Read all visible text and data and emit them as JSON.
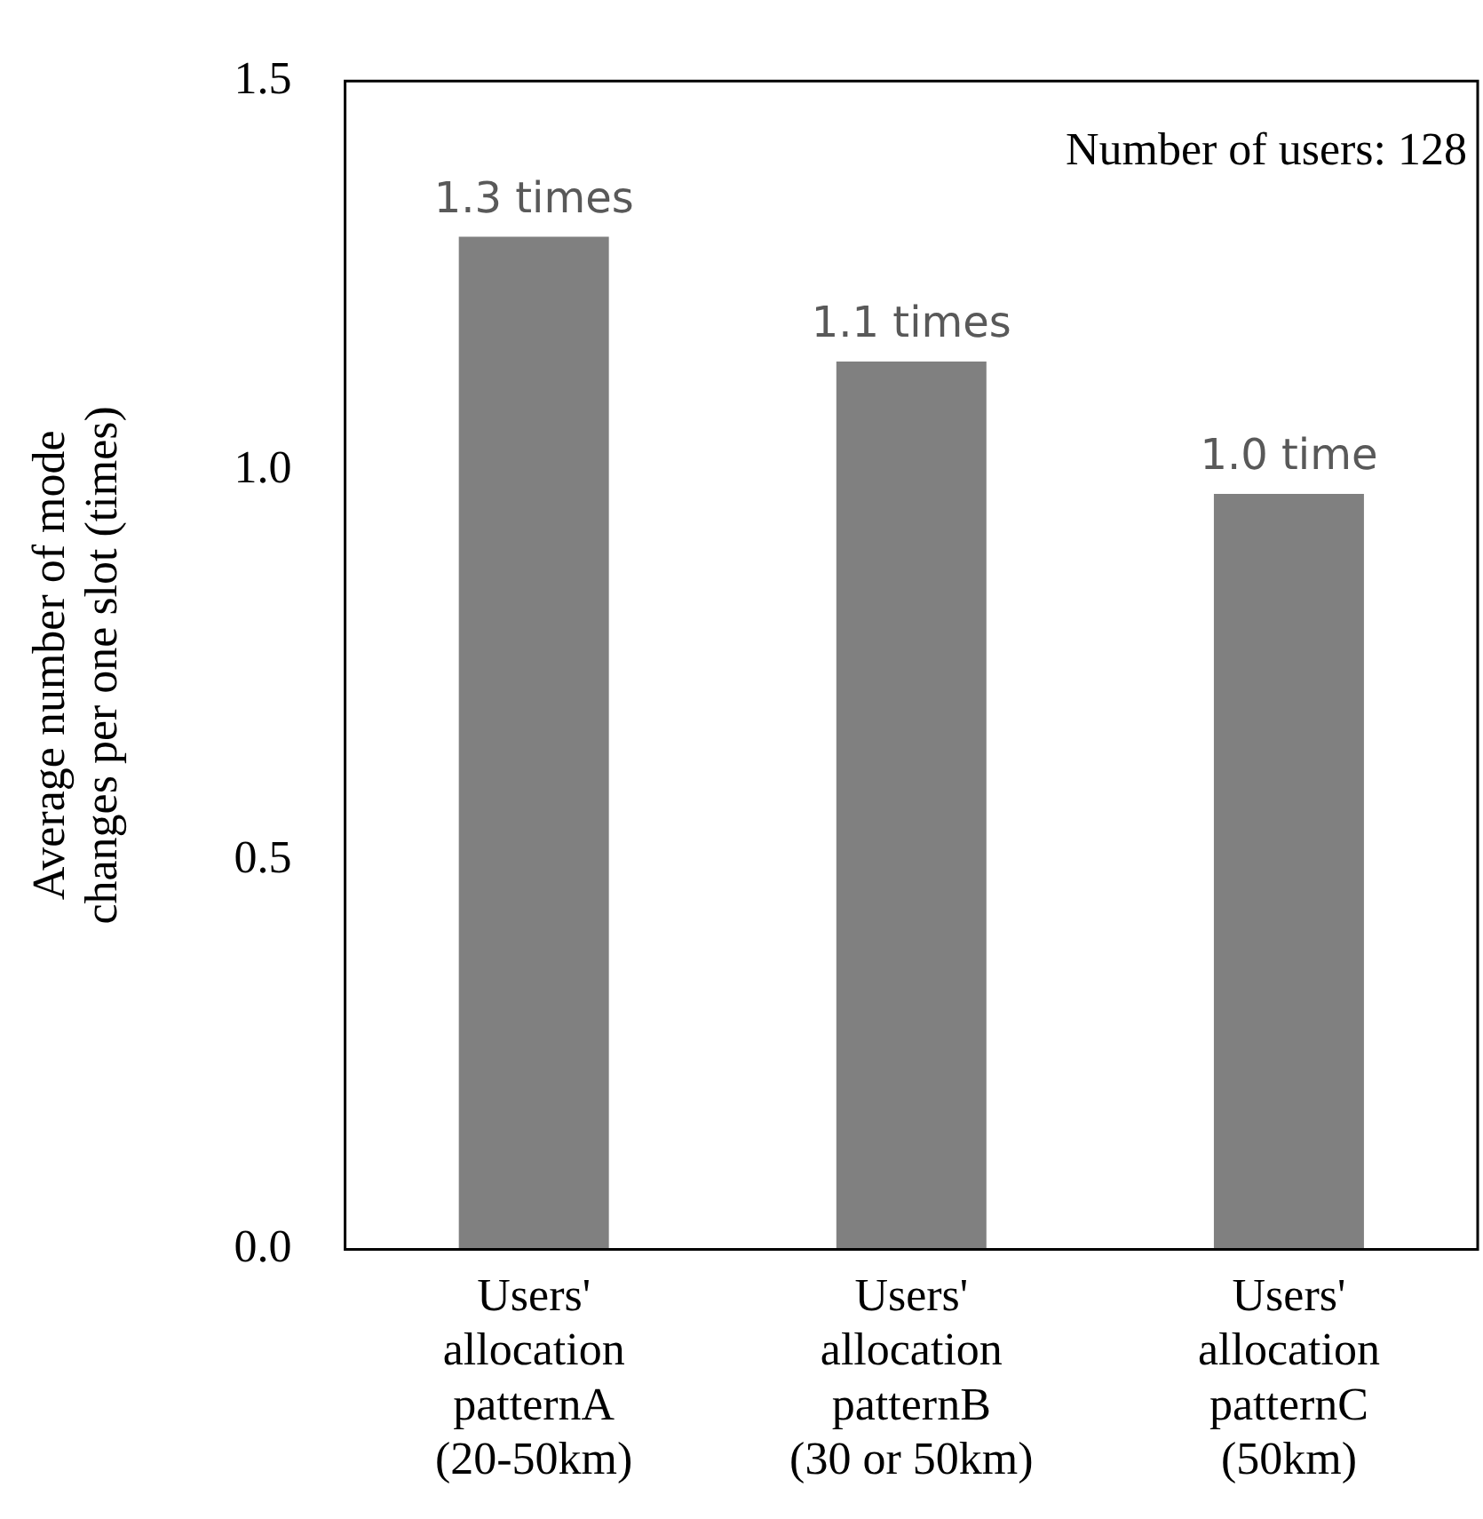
{
  "chart_data": {
    "type": "bar",
    "ylabel": "Average number of mode changes per one slot (times)",
    "categories": [
      "Users' allocation patternA (20-50km)",
      "Users' allocation patternB (30 or 50km)",
      "Users' allocation patternC (50km)"
    ],
    "values": [
      1.3,
      1.14,
      0.97
    ],
    "color": "#808080",
    "value_labels": [
      "1.3 times",
      "1.1 times",
      "1.0 time"
    ],
    "ylim": [
      0,
      1.5
    ],
    "yticks": [
      {
        "value": 0,
        "label": "0.0"
      },
      {
        "value": 0.5,
        "label": "0.5"
      },
      {
        "value": 1,
        "label": "1.0"
      },
      {
        "value": 1.5,
        "label": "1.5"
      }
    ],
    "grid": false,
    "legend": false,
    "annotations": [
      "Number of users: 128"
    ]
  }
}
